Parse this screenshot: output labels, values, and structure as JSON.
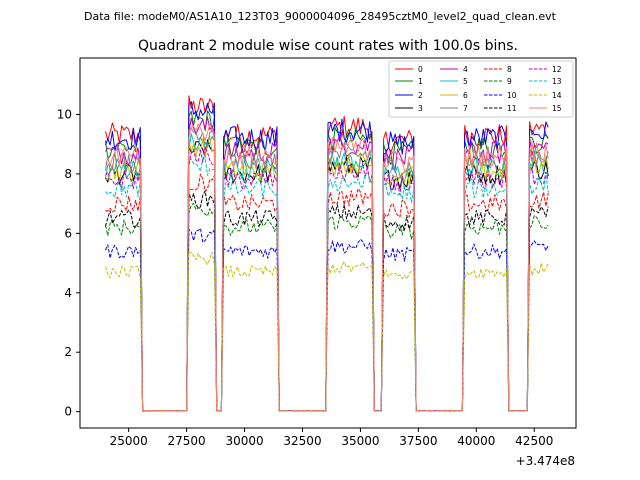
{
  "chart_data": {
    "type": "line",
    "suptitle": "Data file: modeM0/AS1A10_123T03_9000004096_28495cztM0_level2_quad_clean.evt",
    "title": "Quadrant 2 module wise count rates with 100.0s bins.",
    "xlabel": "",
    "ylabel": "",
    "x_offset_label": "+3.474e8",
    "xlim": [
      22900,
      44300
    ],
    "ylim": [
      -0.55,
      11.9
    ],
    "x_ticks": [
      25000,
      27500,
      30000,
      32500,
      35000,
      37500,
      40000,
      42500
    ],
    "x_tick_labels": [
      "25000",
      "27500",
      "30000",
      "32500",
      "35000",
      "37500",
      "40000",
      "42500"
    ],
    "y_ticks": [
      0,
      2,
      4,
      6,
      8,
      10
    ],
    "y_tick_labels": [
      "0",
      "2",
      "4",
      "6",
      "8",
      "10"
    ],
    "bin_width": 100,
    "data_segments": [
      [
        24000,
        25500
      ],
      [
        27600,
        28700
      ],
      [
        29100,
        31400
      ],
      [
        33600,
        35500
      ],
      [
        36000,
        37300
      ],
      [
        39500,
        41300
      ],
      [
        42300,
        43100
      ]
    ],
    "series": [
      {
        "name": "0",
        "color": "#ff0000",
        "dash": false,
        "level": 9.3
      },
      {
        "name": "1",
        "color": "#008000",
        "dash": false,
        "level": 8.9
      },
      {
        "name": "2",
        "color": "#0000ff",
        "dash": false,
        "level": 9.2
      },
      {
        "name": "3",
        "color": "#000000",
        "dash": false,
        "level": 8.0
      },
      {
        "name": "4",
        "color": "#bf00bf",
        "dash": false,
        "level": 8.7
      },
      {
        "name": "5",
        "color": "#00bfbf",
        "dash": false,
        "level": 8.2
      },
      {
        "name": "6",
        "color": "#bfbf00",
        "dash": false,
        "level": 8.1
      },
      {
        "name": "7",
        "color": "#808080",
        "dash": false,
        "level": 8.4
      },
      {
        "name": "8",
        "color": "#ff0000",
        "dash": true,
        "level": 7.0
      },
      {
        "name": "9",
        "color": "#008000",
        "dash": true,
        "level": 6.2
      },
      {
        "name": "10",
        "color": "#0000ff",
        "dash": true,
        "level": 5.4
      },
      {
        "name": "11",
        "color": "#000000",
        "dash": true,
        "level": 6.5
      },
      {
        "name": "12",
        "color": "#bf00bf",
        "dash": true,
        "level": 7.8
      },
      {
        "name": "13",
        "color": "#00bfbf",
        "dash": true,
        "level": 7.5
      },
      {
        "name": "14",
        "color": "#bfbf00",
        "dash": true,
        "level": 4.7
      },
      {
        "name": "15",
        "color": "#fa8072",
        "dash": false,
        "level": 8.6
      }
    ],
    "legend_position": "upper-right"
  }
}
